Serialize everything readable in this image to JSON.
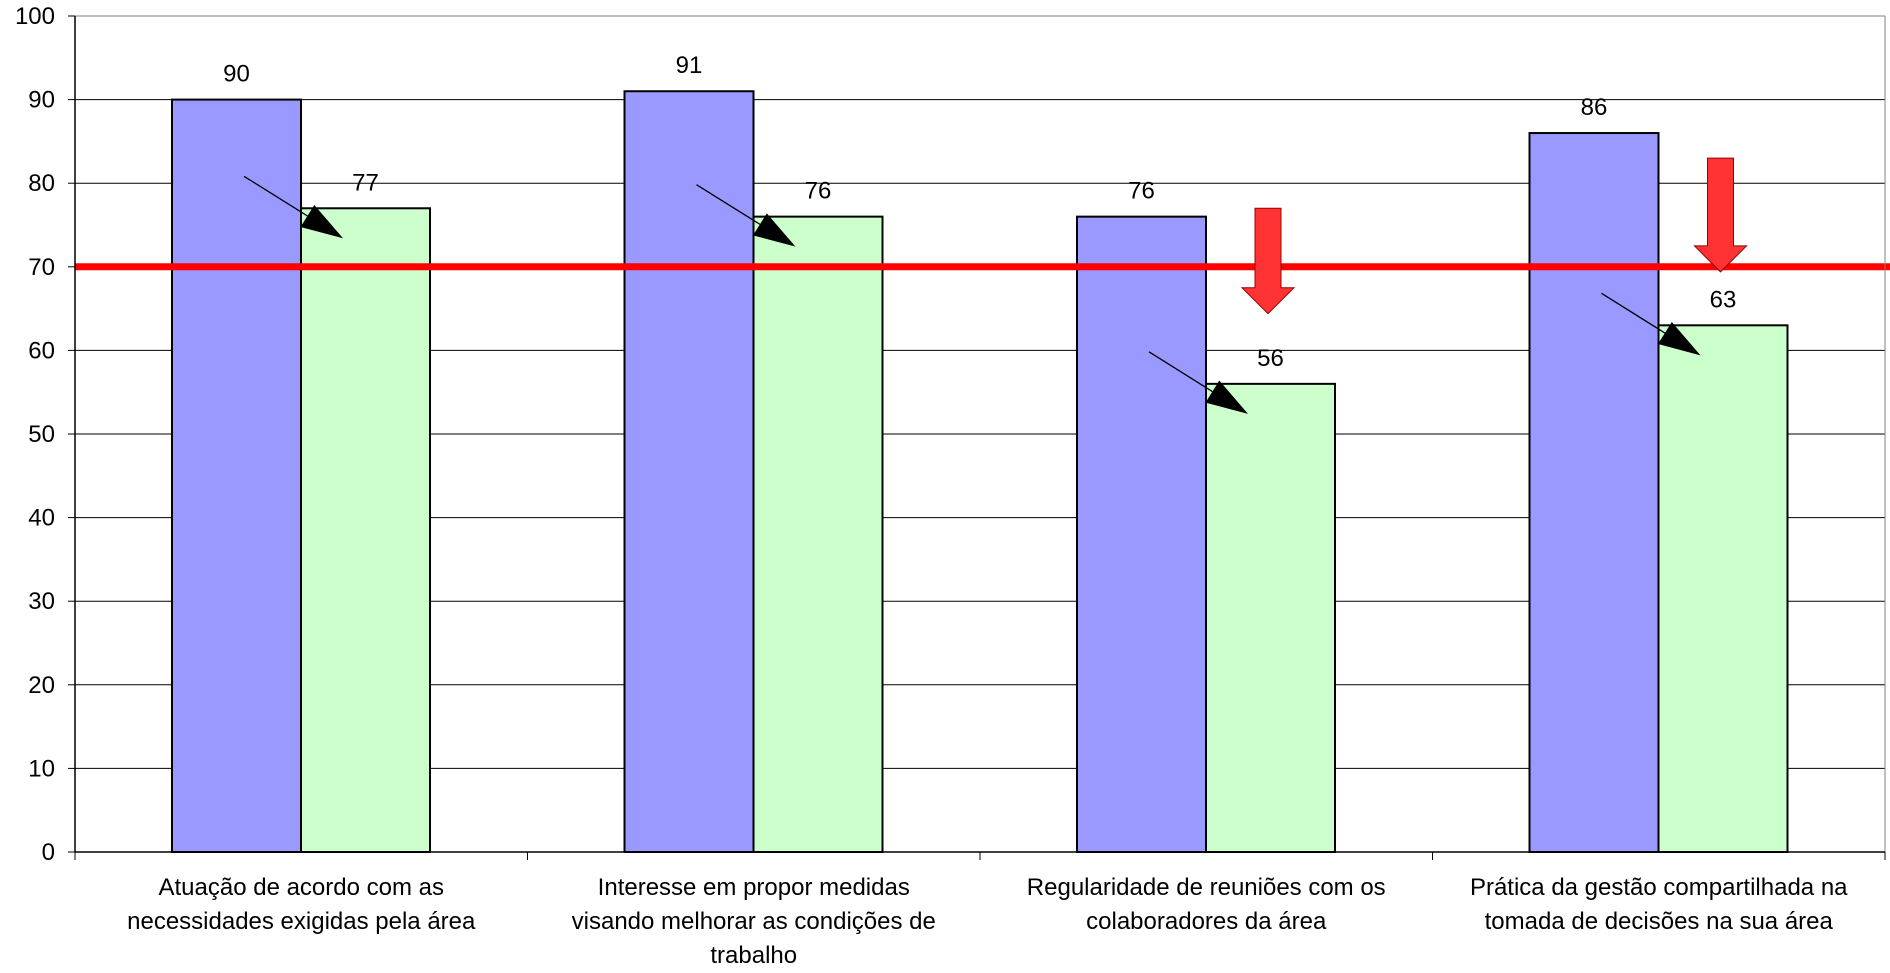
{
  "chart_data": {
    "type": "bar",
    "categories": [
      [
        "Atuação de acordo com as",
        "necessidades exigidas pela área"
      ],
      [
        "Interesse em propor medidas",
        "visando melhorar as condições de",
        "trabalho"
      ],
      [
        "Regularidade de reuniões com os",
        "colaboradores da área"
      ],
      [
        "Prática da gestão compartilhada na",
        "tomada de decisões na sua área"
      ]
    ],
    "series": [
      {
        "values": [
          90,
          91,
          76,
          86
        ],
        "color": "#9999ff"
      },
      {
        "values": [
          77,
          76,
          56,
          63
        ],
        "color": "#ccffcc"
      }
    ],
    "reference_line": {
      "value": 70,
      "color": "#ff0000"
    },
    "ylim": [
      0,
      100
    ],
    "yticks": [
      0,
      10,
      20,
      30,
      40,
      50,
      60,
      70,
      80,
      90,
      100
    ],
    "grid": true,
    "legend": "none",
    "title": "",
    "xlabel": "",
    "ylabel": "",
    "annotations": {
      "decline_arrows": [
        "black-diagonal-arrow",
        "black-diagonal-arrow",
        "black-diagonal-arrow",
        "black-diagonal-arrow"
      ],
      "warning_arrows": [
        false,
        false,
        true,
        true
      ],
      "warning_arrow_color": "#ff3333"
    }
  }
}
